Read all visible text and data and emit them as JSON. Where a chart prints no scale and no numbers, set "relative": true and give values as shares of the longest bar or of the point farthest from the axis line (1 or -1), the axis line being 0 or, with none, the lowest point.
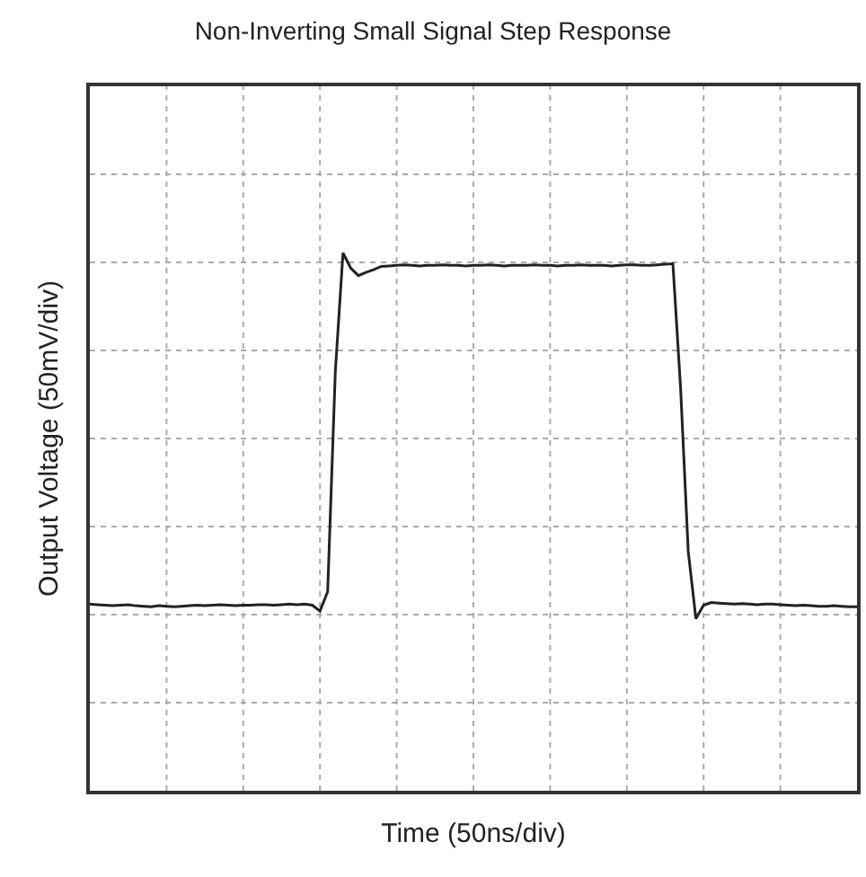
{
  "chart_data": {
    "type": "line",
    "title": "Non-Inverting Small Signal Step Response",
    "xlabel": "Time (50ns/div)",
    "ylabel": "Output Voltage (50mV/div)",
    "relative": true,
    "grid": true,
    "color": "#222222",
    "line_style": "solid",
    "marker": "none",
    "categories": [
      null,
      null,
      null,
      null,
      null,
      null,
      null,
      null,
      null,
      null,
      null,
      null,
      null,
      null,
      null,
      null,
      null,
      null,
      null,
      null,
      null,
      null,
      null,
      null,
      null,
      null,
      null,
      null,
      null,
      null,
      null,
      null,
      null,
      null,
      null,
      null,
      null,
      null,
      null,
      null,
      null,
      null,
      null,
      null,
      null,
      null,
      null,
      null,
      null,
      null,
      null,
      null,
      null,
      null,
      null,
      null,
      null,
      null,
      null,
      null,
      null,
      null,
      null,
      null,
      null,
      null,
      null,
      null,
      null,
      null,
      null,
      null,
      null,
      null,
      null,
      null,
      null,
      null,
      null,
      null,
      null,
      null,
      null,
      null,
      null,
      null,
      null,
      null,
      null,
      null,
      null,
      null,
      null,
      null,
      null,
      null,
      null,
      null,
      null,
      null,
      null
    ],
    "values": [
      0.347,
      0.346,
      0.345,
      0.344,
      0.345,
      0.346,
      0.344,
      0.343,
      0.342,
      0.344,
      0.343,
      0.342,
      0.343,
      0.344,
      0.345,
      0.344,
      0.345,
      0.346,
      0.345,
      0.344,
      0.345,
      0.345,
      0.346,
      0.346,
      0.345,
      0.346,
      0.347,
      0.346,
      0.347,
      0.345,
      0.334,
      0.37,
      0.78,
      1.0,
      0.972,
      0.958,
      0.964,
      0.969,
      0.975,
      0.976,
      0.977,
      0.978,
      0.977,
      0.976,
      0.977,
      0.977,
      0.978,
      0.977,
      0.977,
      0.976,
      0.977,
      0.977,
      0.978,
      0.977,
      0.976,
      0.977,
      0.977,
      0.977,
      0.978,
      0.977,
      0.977,
      0.976,
      0.977,
      0.977,
      0.978,
      0.977,
      0.977,
      0.977,
      0.976,
      0.977,
      0.978,
      0.978,
      0.977,
      0.977,
      0.978,
      0.979,
      0.98,
      0.75,
      0.445,
      0.32,
      0.345,
      0.35,
      0.349,
      0.348,
      0.347,
      0.348,
      0.347,
      0.346,
      0.347,
      0.347,
      0.346,
      0.345,
      0.344,
      0.345,
      0.344,
      0.343,
      0.343,
      0.344,
      0.343,
      0.342,
      0.342
    ]
  }
}
